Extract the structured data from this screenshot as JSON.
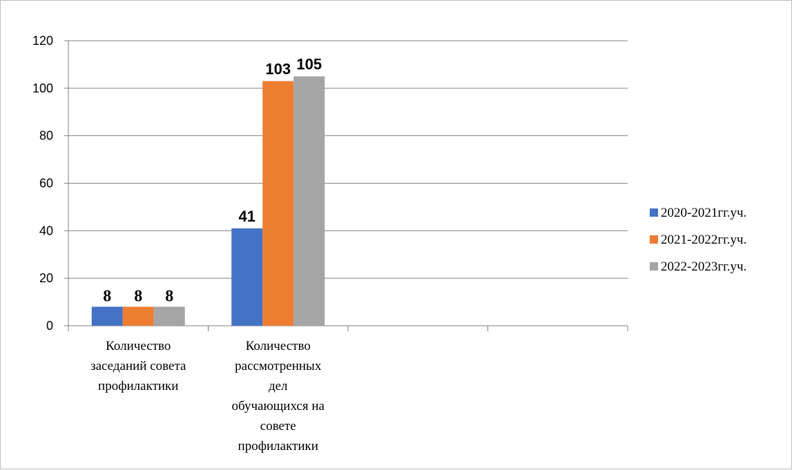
{
  "chart_data": {
    "type": "bar",
    "categories": [
      [
        "Количество",
        "заседаний совета",
        "профилактики"
      ],
      [
        "Количество",
        "рассмотренных",
        "дел",
        "обучающихся на",
        "совете",
        "профилактики"
      ],
      [],
      []
    ],
    "series": [
      {
        "name": "2020-2021гг.уч.",
        "color": "#4472c4",
        "values": [
          8,
          41,
          null,
          null
        ],
        "labels": [
          "8",
          "41",
          "",
          ""
        ]
      },
      {
        "name": "2021-2022гг.уч.",
        "color": "#ed7d31",
        "values": [
          8,
          103,
          null,
          null
        ],
        "labels": [
          "8",
          "103",
          "",
          ""
        ]
      },
      {
        "name": "2022-2023гг.уч.",
        "color": "#a5a5a5",
        "values": [
          8,
          105,
          null,
          null
        ],
        "labels": [
          "8",
          "105",
          "",
          ""
        ]
      }
    ],
    "ylim": [
      0,
      120
    ],
    "yticks": [
      0,
      20,
      40,
      60,
      80,
      100,
      120
    ],
    "grid": true,
    "legend_position": "right",
    "title": "",
    "xlabel": "",
    "ylabel": ""
  }
}
